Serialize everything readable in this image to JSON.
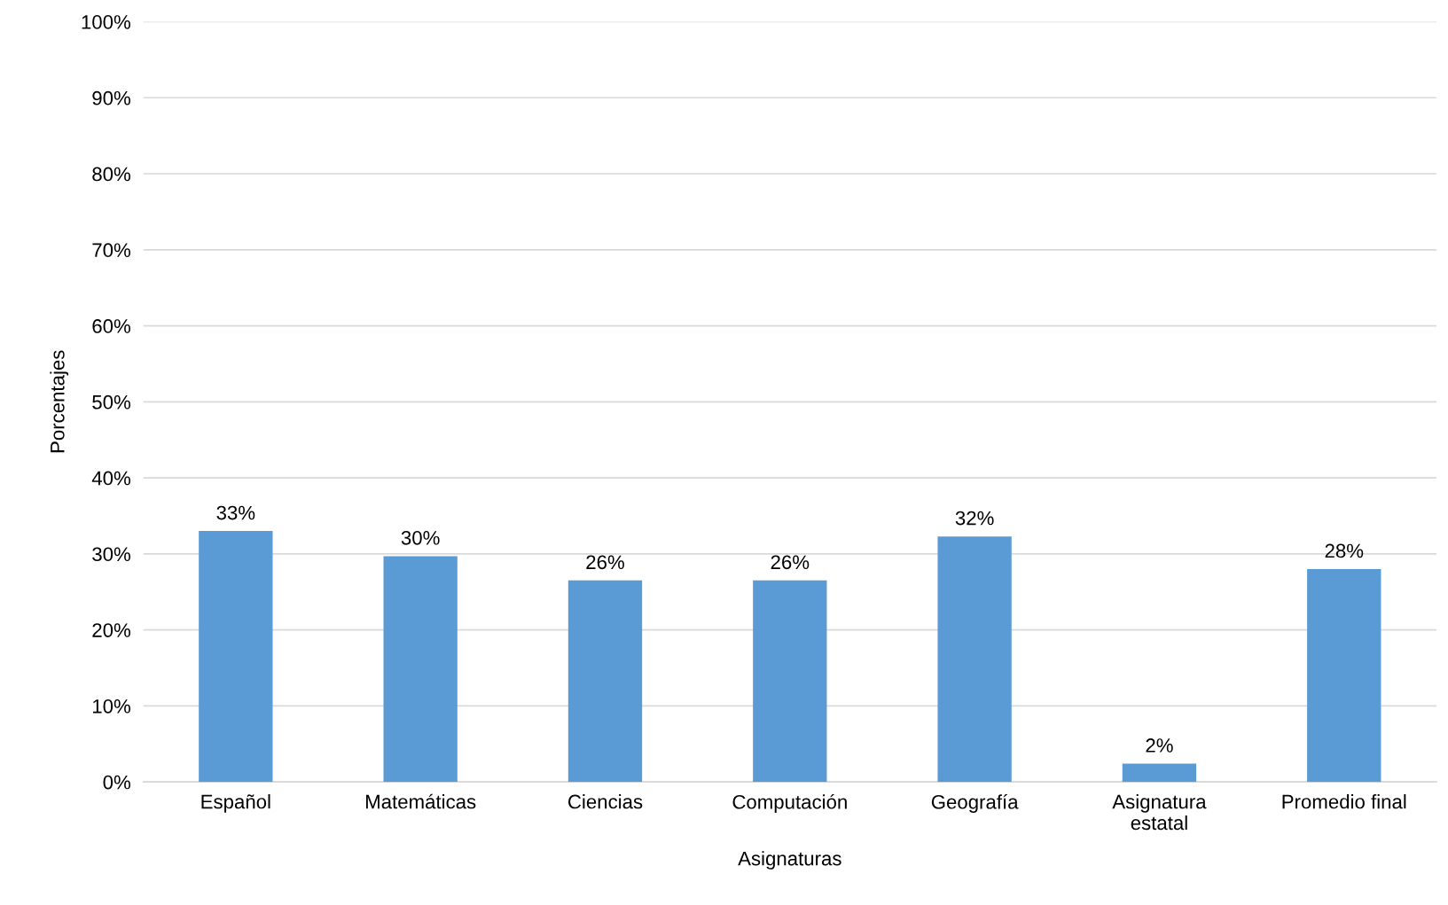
{
  "chart_data": {
    "type": "bar",
    "xlabel": "Asignaturas",
    "ylabel": "Porcentajes",
    "categories": [
      "Español",
      "Matemáticas",
      "Ciencias",
      "Computación",
      "Geografía",
      "Asignatura\nestatal",
      "Promedio final"
    ],
    "values": [
      33.0,
      29.7,
      26.5,
      26.5,
      32.3,
      2.4,
      28.0
    ],
    "value_labels": [
      "33%",
      "30%",
      "26%",
      "26%",
      "32%",
      "2%",
      "28%"
    ],
    "color": "#5b9bd5",
    "ylim": [
      0,
      100
    ],
    "yticks": [
      {
        "value": 0,
        "label": "0%"
      },
      {
        "value": 10,
        "label": "10%"
      },
      {
        "value": 20,
        "label": "20%"
      },
      {
        "value": 30,
        "label": "30%"
      },
      {
        "value": 40,
        "label": "40%"
      },
      {
        "value": 50,
        "label": "50%"
      },
      {
        "value": 60,
        "label": "60%"
      },
      {
        "value": 70,
        "label": "70%"
      },
      {
        "value": 80,
        "label": "80%"
      },
      {
        "value": 90,
        "label": "90%"
      },
      {
        "value": 100,
        "label": "100%"
      }
    ],
    "grid": "y"
  }
}
